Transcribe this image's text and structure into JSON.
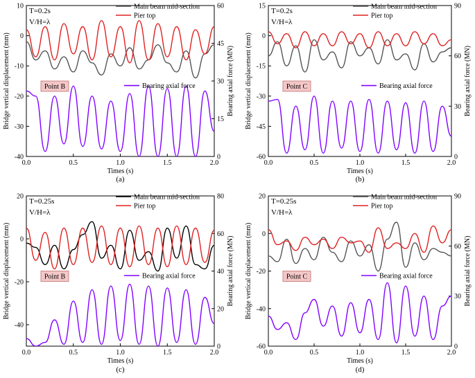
{
  "figure": {
    "background": "#ffffff",
    "panels": [
      {
        "id": "a",
        "caption": "(a)",
        "params": [
          "T=0.2s",
          "V/H=λ"
        ],
        "point_label": "Point B",
        "xlabel": "Times (s)",
        "ylabel_left": "Bridge vertical displacement (mm)",
        "ylabel_right": "Bearing axial force (MN)",
        "x_ticks": [
          "0.0",
          "0.5",
          "1.0",
          "1.5",
          "2.0"
        ],
        "y_left_ticks": [
          "10",
          "0",
          "-10",
          "-20",
          "-30",
          "-40"
        ],
        "y_right_ticks": [
          "60",
          "45",
          "30",
          "15",
          "0"
        ],
        "legend": [
          "Main beam mid-section",
          "Pier top",
          "Bearing axial force"
        ]
      },
      {
        "id": "b",
        "caption": "(b)",
        "params": [
          "T=0.2s",
          "V/H=λ"
        ],
        "point_label": "Point C",
        "xlabel": "Times (s)",
        "ylabel_left": "Bridge vertical displacement (mm)",
        "ylabel_right": "Bearing axial force (MN)",
        "x_ticks": [
          "0.0",
          "0.5",
          "1.0",
          "1.5",
          "2.0"
        ],
        "y_left_ticks": [
          "15",
          "0",
          "-15",
          "-30",
          "-45",
          "-60"
        ],
        "y_right_ticks": [
          "90",
          "60",
          "30",
          "0"
        ],
        "legend": [
          "Main beam mid-section",
          "Pier top",
          "Bearing axial force"
        ]
      },
      {
        "id": "c",
        "caption": "(c)",
        "params": [
          "T=0.25s",
          "V/H=λ"
        ],
        "point_label": "Point B",
        "xlabel": "Times (s)",
        "ylabel_left": "Bridge vertical displacement (mm)",
        "ylabel_right": "Bearing axial force (MN)",
        "x_ticks": [
          "0.0",
          "0.5",
          "1.0",
          "1.5",
          "2.0"
        ],
        "y_left_ticks": [
          "20",
          "0",
          "-20",
          "-40"
        ],
        "y_right_ticks": [
          "80",
          "60",
          "40",
          "20",
          "0"
        ],
        "legend": [
          "Main beam mid-section",
          "Pier top",
          "Bearing axial force"
        ]
      },
      {
        "id": "d",
        "caption": "(d)",
        "params": [
          "T=0.25s",
          "V/H=λ"
        ],
        "point_label": "Point C",
        "xlabel": "Times (s)",
        "ylabel_left": "Bridge vertical displacement (mm)",
        "ylabel_right": "Bearing axial force (MN)",
        "x_ticks": [
          "0.0",
          "0.5",
          "1.0",
          "1.5",
          "2.0"
        ],
        "y_left_ticks": [
          "20",
          "0",
          "-20",
          "-40",
          "-60"
        ],
        "y_right_ticks": [
          "90",
          "60",
          "30",
          "0"
        ],
        "legend": [
          "Main beam mid-section",
          "Pier top",
          "Bearing axial force"
        ]
      }
    ]
  },
  "chart_data": [
    {
      "type": "line",
      "panel": "a",
      "xlabel": "Times (s)",
      "ylabel": "Bridge vertical displacement (mm)",
      "y2label": "Bearing axial force (MN)",
      "xlim": [
        0,
        2
      ],
      "ylim": [
        -40,
        10
      ],
      "y2lim": [
        0,
        60
      ],
      "legend_placement": "top-right (displacement), middle-right (force)",
      "series": [
        {
          "name": "Main beam mid-section",
          "color": "#555555",
          "axis": "left",
          "x": [
            0.0,
            0.1,
            0.2,
            0.3,
            0.4,
            0.5,
            0.6,
            0.7,
            0.8,
            0.9,
            1.0,
            1.1,
            1.2,
            1.3,
            1.4,
            1.5,
            1.6,
            1.7,
            1.8,
            1.9,
            2.0
          ],
          "y": [
            -2,
            -8,
            -5,
            -11,
            -7,
            -12,
            -5,
            -9,
            -13,
            -6,
            -10,
            -4,
            -11,
            -8,
            -3,
            -9,
            -12,
            -5,
            -14,
            -6,
            -3
          ]
        },
        {
          "name": "Pier top",
          "color": "#e02020",
          "axis": "left",
          "x": [
            0.0,
            0.1,
            0.2,
            0.3,
            0.4,
            0.5,
            0.6,
            0.7,
            0.8,
            0.9,
            1.0,
            1.1,
            1.2,
            1.3,
            1.4,
            1.5,
            1.6,
            1.7,
            1.8,
            1.9,
            2.0
          ],
          "y": [
            2,
            -7,
            3,
            -8,
            4,
            -6,
            3,
            -8,
            5,
            -7,
            3,
            -9,
            5,
            -8,
            4,
            -7,
            3,
            -8,
            2,
            -6,
            3
          ]
        },
        {
          "name": "Bearing axial force",
          "color": "#8000ff",
          "axis": "right",
          "x": [
            0.0,
            0.1,
            0.2,
            0.3,
            0.4,
            0.5,
            0.6,
            0.7,
            0.8,
            0.9,
            1.0,
            1.1,
            1.2,
            1.3,
            1.4,
            1.5,
            1.6,
            1.7,
            1.8,
            1.9,
            2.0
          ],
          "y": [
            26,
            24,
            2,
            24,
            5,
            28,
            4,
            24,
            3,
            22,
            2,
            25,
            0,
            28,
            0,
            27,
            0,
            28,
            0,
            26,
            10
          ]
        }
      ]
    },
    {
      "type": "line",
      "panel": "b",
      "xlabel": "Times (s)",
      "ylabel": "Bridge vertical displacement (mm)",
      "y2label": "Bearing axial force (MN)",
      "xlim": [
        0,
        2
      ],
      "ylim": [
        -60,
        15
      ],
      "y2lim": [
        0,
        90
      ],
      "legend_placement": "top-right (displacement), middle-right (force)",
      "series": [
        {
          "name": "Main beam mid-section",
          "color": "#555555",
          "axis": "left",
          "x": [
            0.0,
            0.1,
            0.2,
            0.3,
            0.4,
            0.5,
            0.6,
            0.7,
            0.8,
            0.9,
            1.0,
            1.1,
            1.2,
            1.3,
            1.4,
            1.5,
            1.6,
            1.7,
            1.8,
            1.9,
            2.0
          ],
          "y": [
            -10,
            -3,
            -15,
            -5,
            -18,
            -2,
            -12,
            -8,
            -16,
            -3,
            -10,
            -6,
            -14,
            -2,
            -12,
            -9,
            -17,
            -4,
            -13,
            -8,
            -6
          ]
        },
        {
          "name": "Pier top",
          "color": "#e02020",
          "axis": "left",
          "x": [
            0.0,
            0.1,
            0.2,
            0.3,
            0.4,
            0.5,
            0.6,
            0.7,
            0.8,
            0.9,
            1.0,
            1.1,
            1.2,
            1.3,
            1.4,
            1.5,
            1.6,
            1.7,
            1.8,
            1.9,
            2.0
          ],
          "y": [
            2,
            -4,
            1,
            -6,
            2,
            -5,
            1,
            -5,
            2,
            -4,
            1,
            -6,
            2,
            -5,
            1,
            -5,
            2,
            -4,
            1,
            -5,
            -2
          ]
        },
        {
          "name": "Bearing axial force",
          "color": "#8000ff",
          "axis": "right",
          "x": [
            0.0,
            0.1,
            0.2,
            0.3,
            0.4,
            0.5,
            0.6,
            0.7,
            0.8,
            0.9,
            1.0,
            1.1,
            1.2,
            1.3,
            1.4,
            1.5,
            1.6,
            1.7,
            1.8,
            1.9,
            2.0
          ],
          "y": [
            33,
            34,
            2,
            30,
            4,
            36,
            2,
            33,
            5,
            33,
            3,
            34,
            2,
            33,
            4,
            32,
            2,
            33,
            3,
            30,
            12
          ]
        }
      ]
    },
    {
      "type": "line",
      "panel": "c",
      "xlabel": "Times (s)",
      "ylabel": "Bridge vertical displacement (mm)",
      "y2label": "Bearing axial force (MN)",
      "xlim": [
        0,
        2
      ],
      "ylim": [
        -50,
        20
      ],
      "y2lim": [
        0,
        80
      ],
      "legend_placement": "top-right (displacement), middle-right (force)",
      "series": [
        {
          "name": "Main beam mid-section",
          "color": "#000000",
          "axis": "left",
          "x": [
            0.0,
            0.1,
            0.2,
            0.3,
            0.4,
            0.5,
            0.6,
            0.7,
            0.8,
            0.9,
            1.0,
            1.1,
            1.2,
            1.3,
            1.4,
            1.5,
            1.6,
            1.7,
            1.8,
            1.9,
            2.0
          ],
          "y": [
            -2,
            -4,
            -12,
            -3,
            -14,
            -5,
            2,
            8,
            -9,
            -3,
            -14,
            4,
            -10,
            -6,
            -15,
            5,
            -9,
            6,
            -12,
            -14,
            -3
          ]
        },
        {
          "name": "Pier top",
          "color": "#e02020",
          "axis": "left",
          "x": [
            0.0,
            0.1,
            0.2,
            0.3,
            0.4,
            0.5,
            0.6,
            0.7,
            0.8,
            0.9,
            1.0,
            1.1,
            1.2,
            1.3,
            1.4,
            1.5,
            1.6,
            1.7,
            1.8,
            1.9,
            2.0
          ],
          "y": [
            5,
            -10,
            3,
            -14,
            5,
            -12,
            5,
            -11,
            6,
            -12,
            5,
            -13,
            6,
            -12,
            5,
            -13,
            6,
            -12,
            5,
            -11,
            4
          ]
        },
        {
          "name": "Bearing axial force",
          "color": "#8000ff",
          "axis": "right",
          "x": [
            0.0,
            0.1,
            0.2,
            0.3,
            0.4,
            0.5,
            0.6,
            0.7,
            0.8,
            0.9,
            1.0,
            1.1,
            1.2,
            1.3,
            1.4,
            1.5,
            1.6,
            1.7,
            1.8,
            1.9,
            2.0
          ],
          "y": [
            4,
            0,
            2,
            14,
            1,
            24,
            2,
            30,
            1,
            32,
            3,
            33,
            1,
            32,
            0,
            31,
            2,
            30,
            1,
            26,
            12
          ]
        }
      ]
    },
    {
      "type": "line",
      "panel": "d",
      "xlabel": "Times (s)",
      "ylabel": "Bridge vertical displacement (mm)",
      "y2label": "Bearing axial force (MN)",
      "xlim": [
        0,
        2
      ],
      "ylim": [
        -60,
        20
      ],
      "y2lim": [
        0,
        90
      ],
      "legend_placement": "top-right (displacement), middle-right (force)",
      "series": [
        {
          "name": "Main beam mid-section",
          "color": "#555555",
          "axis": "left",
          "x": [
            0.0,
            0.1,
            0.2,
            0.3,
            0.4,
            0.5,
            0.6,
            0.7,
            0.8,
            0.9,
            1.0,
            1.1,
            1.2,
            1.3,
            1.4,
            1.5,
            1.6,
            1.7,
            1.8,
            1.9,
            2.0
          ],
          "y": [
            -12,
            -15,
            -3,
            -16,
            -8,
            -14,
            -2,
            -10,
            -15,
            -4,
            -12,
            -6,
            -20,
            -3,
            6,
            -18,
            -5,
            -14,
            -8,
            -10,
            -12
          ]
        },
        {
          "name": "Pier top",
          "color": "#e02020",
          "axis": "left",
          "x": [
            0.0,
            0.1,
            0.2,
            0.3,
            0.4,
            0.5,
            0.6,
            0.7,
            0.8,
            0.9,
            1.0,
            1.1,
            1.2,
            1.3,
            1.4,
            1.5,
            1.6,
            1.7,
            1.8,
            1.9,
            2.0
          ],
          "y": [
            2,
            -6,
            -4,
            -9,
            -2,
            -6,
            -3,
            -8,
            -2,
            -5,
            -4,
            -10,
            3,
            -8,
            -5,
            -8,
            0,
            -10,
            4,
            -5,
            2
          ]
        },
        {
          "name": "Bearing axial force",
          "color": "#8000ff",
          "axis": "right",
          "x": [
            0.0,
            0.1,
            0.2,
            0.3,
            0.4,
            0.5,
            0.6,
            0.7,
            0.8,
            0.9,
            1.0,
            1.1,
            1.2,
            1.3,
            1.4,
            1.5,
            1.6,
            1.7,
            1.8,
            1.9,
            2.0
          ],
          "y": [
            18,
            10,
            14,
            4,
            20,
            28,
            12,
            24,
            6,
            26,
            8,
            28,
            4,
            38,
            2,
            36,
            6,
            30,
            4,
            24,
            30
          ]
        }
      ]
    }
  ]
}
